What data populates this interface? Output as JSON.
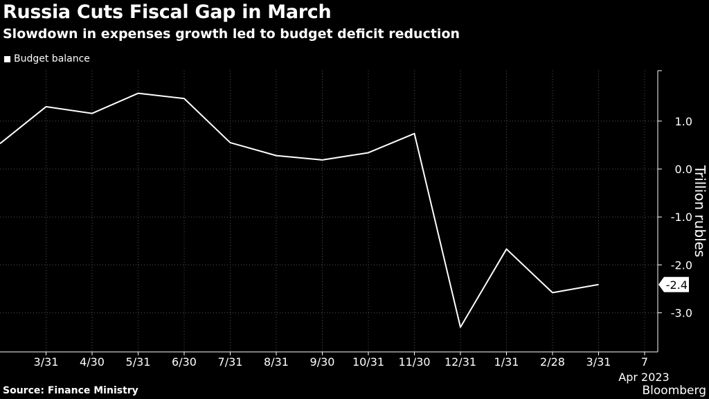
{
  "header": {
    "title": "Russia Cuts Fiscal Gap in March",
    "subtitle": "Slowdown in expenses growth led to budget deficit reduction"
  },
  "legend": {
    "label": "Budget balance"
  },
  "footer": {
    "source": "Source: Finance Ministry",
    "brand": "Bloomberg"
  },
  "colors": {
    "background": "#000000",
    "line": "#ffffff",
    "grid": "#555555"
  },
  "chart_data": {
    "type": "line",
    "title": "Russia Cuts Fiscal Gap in March",
    "subtitle": "Slowdown in expenses growth led to budget deficit reduction",
    "ylabel": "Trillion rubles",
    "xlabel": "",
    "ylim": [
      -3.8,
      2.0
    ],
    "yticks": [
      1.0,
      0.0,
      -1.0,
      -2.0,
      -3.0
    ],
    "ytick_labels": [
      "1.0",
      "0.0",
      "-1.0",
      "-2.0",
      "-3.0"
    ],
    "xtick_labels": [
      "3/31",
      "4/30",
      "5/31",
      "6/30",
      "7/31",
      "8/31",
      "9/30",
      "10/31",
      "11/30",
      "12/31",
      "1/31",
      "2/28",
      "3/31",
      "7"
    ],
    "x_secondary_label": "Apr 2023",
    "series": [
      {
        "name": "Budget balance",
        "x": [
          "2/28",
          "3/31",
          "4/30",
          "5/31",
          "6/30",
          "7/31",
          "8/31",
          "9/30",
          "10/31",
          "11/30",
          "12/31",
          "1/31",
          "2/28",
          "3/31"
        ],
        "values": [
          0.53,
          1.3,
          1.16,
          1.58,
          1.47,
          0.55,
          0.28,
          0.19,
          0.34,
          0.74,
          -3.3,
          -1.67,
          -2.58,
          -2.41
        ]
      }
    ],
    "last_value_label": "-2.4",
    "grid": true,
    "legend": "top-left"
  }
}
